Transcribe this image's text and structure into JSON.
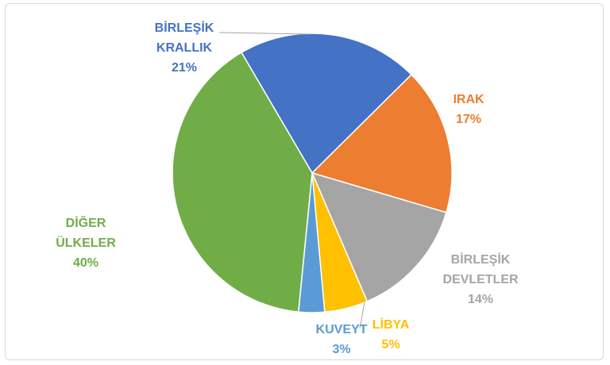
{
  "chart_data": {
    "type": "pie",
    "slices": [
      {
        "label_lines": [
          "BİRLEŞİK",
          "KRALLIK"
        ],
        "value": 21,
        "value_label": "21%",
        "color": "#4472C4"
      },
      {
        "label_lines": [
          "IRAK"
        ],
        "value": 17,
        "value_label": "17%",
        "color": "#ED7D31"
      },
      {
        "label_lines": [
          "BİRLEŞİK",
          "DEVLETLER"
        ],
        "value": 14,
        "value_label": "14%",
        "color": "#A5A5A5"
      },
      {
        "label_lines": [
          "LİBYA"
        ],
        "value": 5,
        "value_label": "5%",
        "color": "#FFC000"
      },
      {
        "label_lines": [
          "KUVEYT"
        ],
        "value": 3,
        "value_label": "3%",
        "color": "#5B9BD5"
      },
      {
        "label_lines": [
          "DİĞER",
          "ÜLKELER"
        ],
        "value": 40,
        "value_label": "40%",
        "color": "#70AD47"
      }
    ],
    "legend": "none"
  }
}
